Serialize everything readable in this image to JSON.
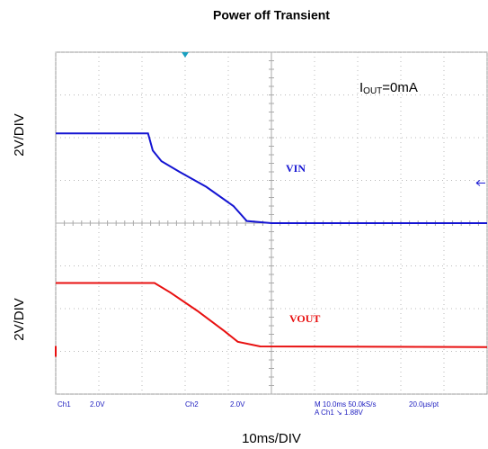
{
  "chart_data": {
    "type": "line",
    "title": "Power off Transient",
    "ylabel": "2V/DIV",
    "y2label": "2V/DIV",
    "xlabel": "10ms/DIV",
    "annotation": {
      "main": "I",
      "sub": "OUT",
      "rest": "=0mA"
    },
    "xlim": [
      0,
      100
    ],
    "xticks": [
      0,
      10,
      20,
      30,
      40,
      50,
      60,
      70,
      80,
      90,
      100
    ],
    "ylim": [
      -8,
      8
    ],
    "yticks": [
      -8,
      -6,
      -4,
      -2,
      0,
      2,
      4,
      6,
      8
    ],
    "y2lim": [
      -2,
      14
    ],
    "grid": true,
    "trigger_x": 30,
    "trigger_level": 1.88,
    "series": [
      {
        "name": "VIN",
        "color": "#1414d2",
        "x": [
          0,
          21.4,
          22.5,
          24.5,
          28.7,
          34.9,
          41.2,
          44.3,
          50,
          100
        ],
        "values": [
          4.2,
          4.2,
          3.4,
          2.9,
          2.4,
          1.7,
          0.8,
          0.1,
          0,
          0
        ]
      },
      {
        "name": "VOUT",
        "color": "#e81010",
        "axis": "y2",
        "x": [
          0,
          22.9,
          26.6,
          32.8,
          39.1,
          42.2,
          47.4,
          100
        ],
        "values": [
          3.2,
          3.2,
          2.75,
          1.9,
          0.95,
          0.45,
          0.23,
          0.2
        ]
      }
    ],
    "status": [
      "Ch1",
      "2.0V",
      "Ch2",
      "2.0V",
      "M 10.0ms 50.0kS/s",
      "20.0µs/pt",
      "A Ch1 ↘ 1.88V"
    ]
  }
}
